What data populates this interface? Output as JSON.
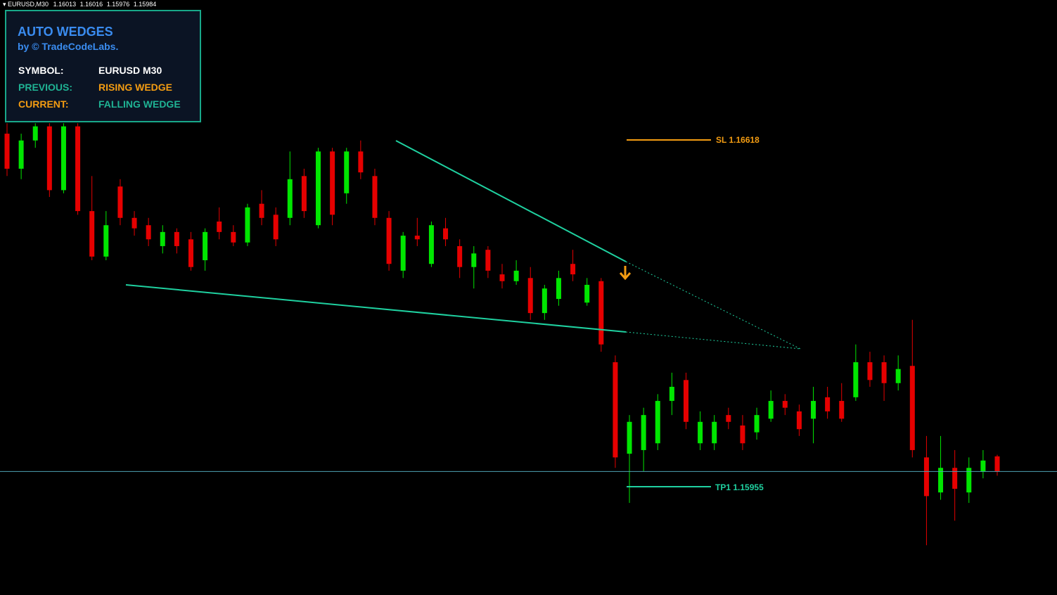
{
  "header": {
    "symbol": "EURUSD,M30"
  },
  "panel": {
    "title": "AUTO WEDGES",
    "subtitle": "by © TradeCodeLabs.",
    "rows": [
      [
        "SYMBOL:",
        "EURUSD M30"
      ],
      [
        "PREVIOUS:",
        "RISING WEDGE"
      ],
      [
        "CURRENT:",
        "FALLING WEDGE"
      ]
    ]
  },
  "chart": {
    "bull_color": "#00e600",
    "bear_color": "#e60000",
    "sl": {
      "label": "SL",
      "value": 1.16618
    },
    "tp": {
      "label": "TP1",
      "value": 1.15955
    },
    "candles": [
      [
        1.1663,
        1.1665,
        1.16549,
        1.16563
      ],
      [
        1.16563,
        1.1663,
        1.16543,
        1.16617
      ],
      [
        1.16617,
        1.1665,
        1.16603,
        1.16644
      ],
      [
        1.16644,
        1.1665,
        1.16509,
        1.16522
      ],
      [
        1.16522,
        1.1665,
        1.16516,
        1.16644
      ],
      [
        1.16644,
        1.1665,
        1.16475,
        1.16482
      ],
      [
        1.16482,
        1.16549,
        1.16388,
        1.16395
      ],
      [
        1.16395,
        1.16482,
        1.16388,
        1.16455
      ],
      [
        1.16529,
        1.16543,
        1.16455,
        1.16469
      ],
      [
        1.16469,
        1.16482,
        1.16435,
        1.16449
      ],
      [
        1.16455,
        1.16469,
        1.16415,
        1.16428
      ],
      [
        1.16415,
        1.16455,
        1.16401,
        1.16442
      ],
      [
        1.16442,
        1.16449,
        1.16401,
        1.16415
      ],
      [
        1.16428,
        1.16442,
        1.16368,
        1.16375
      ],
      [
        1.16388,
        1.16449,
        1.16368,
        1.16442
      ],
      [
        1.16462,
        1.16489,
        1.16428,
        1.16442
      ],
      [
        1.16442,
        1.16455,
        1.16415,
        1.16422
      ],
      [
        1.16422,
        1.16496,
        1.16415,
        1.16489
      ],
      [
        1.16496,
        1.16522,
        1.16455,
        1.16469
      ],
      [
        1.16475,
        1.16489,
        1.16415,
        1.16428
      ],
      [
        1.16469,
        1.16596,
        1.16455,
        1.16543
      ],
      [
        1.16549,
        1.16563,
        1.16469,
        1.16482
      ],
      [
        1.16455,
        1.16603,
        1.16449,
        1.16596
      ],
      [
        1.16596,
        1.16603,
        1.16455,
        1.16475
      ],
      [
        1.16516,
        1.16603,
        1.16496,
        1.16596
      ],
      [
        1.16596,
        1.16617,
        1.16543,
        1.16556
      ],
      [
        1.16549,
        1.16563,
        1.16455,
        1.16469
      ],
      [
        1.16469,
        1.16482,
        1.16368,
        1.16381
      ],
      [
        1.16368,
        1.16442,
        1.16354,
        1.16435
      ],
      [
        1.16435,
        1.16469,
        1.16415,
        1.16428
      ],
      [
        1.16381,
        1.16462,
        1.16375,
        1.16455
      ],
      [
        1.16449,
        1.16469,
        1.16415,
        1.16428
      ],
      [
        1.16415,
        1.16428,
        1.16354,
        1.16375
      ],
      [
        1.16375,
        1.16415,
        1.16334,
        1.16401
      ],
      [
        1.16408,
        1.16415,
        1.16354,
        1.16368
      ],
      [
        1.16361,
        1.16381,
        1.16334,
        1.16348
      ],
      [
        1.16348,
        1.16388,
        1.16341,
        1.16368
      ],
      [
        1.16354,
        1.16375,
        1.16274,
        1.16287
      ],
      [
        1.16287,
        1.16341,
        1.16274,
        1.16334
      ],
      [
        1.16314,
        1.16368,
        1.16301,
        1.16354
      ],
      [
        1.16381,
        1.16408,
        1.16348,
        1.16361
      ],
      [
        1.16307,
        1.16354,
        1.16301,
        1.16341
      ],
      [
        1.16348,
        1.16354,
        1.16213,
        1.16227
      ],
      [
        1.16193,
        1.16206,
        1.15991,
        1.16011
      ],
      [
        1.16018,
        1.16092,
        1.15924,
        1.16079
      ],
      [
        1.16025,
        1.16106,
        1.15984,
        1.16092
      ],
      [
        1.16038,
        1.16132,
        1.16025,
        1.16119
      ],
      [
        1.16119,
        1.16173,
        1.16092,
        1.16146
      ],
      [
        1.16159,
        1.16173,
        1.16065,
        1.16079
      ],
      [
        1.16038,
        1.16099,
        1.16025,
        1.16079
      ],
      [
        1.16038,
        1.16092,
        1.16025,
        1.16079
      ],
      [
        1.16092,
        1.16106,
        1.16065,
        1.16079
      ],
      [
        1.16072,
        1.16092,
        1.16025,
        1.16038
      ],
      [
        1.16059,
        1.16106,
        1.16045,
        1.16092
      ],
      [
        1.16085,
        1.16139,
        1.16079,
        1.16119
      ],
      [
        1.16119,
        1.16132,
        1.16092,
        1.16106
      ],
      [
        1.16099,
        1.16112,
        1.16052,
        1.16065
      ],
      [
        1.16085,
        1.16146,
        1.16038,
        1.16119
      ],
      [
        1.16126,
        1.16146,
        1.16085,
        1.16099
      ],
      [
        1.16119,
        1.16153,
        1.16079,
        1.16085
      ],
      [
        1.16126,
        1.16227,
        1.16119,
        1.16193
      ],
      [
        1.16193,
        1.16213,
        1.16146,
        1.16159
      ],
      [
        1.16193,
        1.16206,
        1.16119,
        1.16153
      ],
      [
        1.16153,
        1.16206,
        1.16139,
        1.1618
      ],
      [
        1.16186,
        1.16274,
        1.16011,
        1.16025
      ],
      [
        1.16011,
        1.16052,
        1.15843,
        1.15937
      ],
      [
        1.15944,
        1.16052,
        1.1593,
        1.15991
      ],
      [
        1.15991,
        1.16025,
        1.1589,
        1.15951
      ],
      [
        1.15944,
        1.16011,
        1.15924,
        1.15991
      ],
      [
        1.15984,
        1.16025,
        1.15971,
        1.16005
      ],
      [
        1.16013,
        1.16016,
        1.15976,
        1.15984
      ]
    ]
  }
}
